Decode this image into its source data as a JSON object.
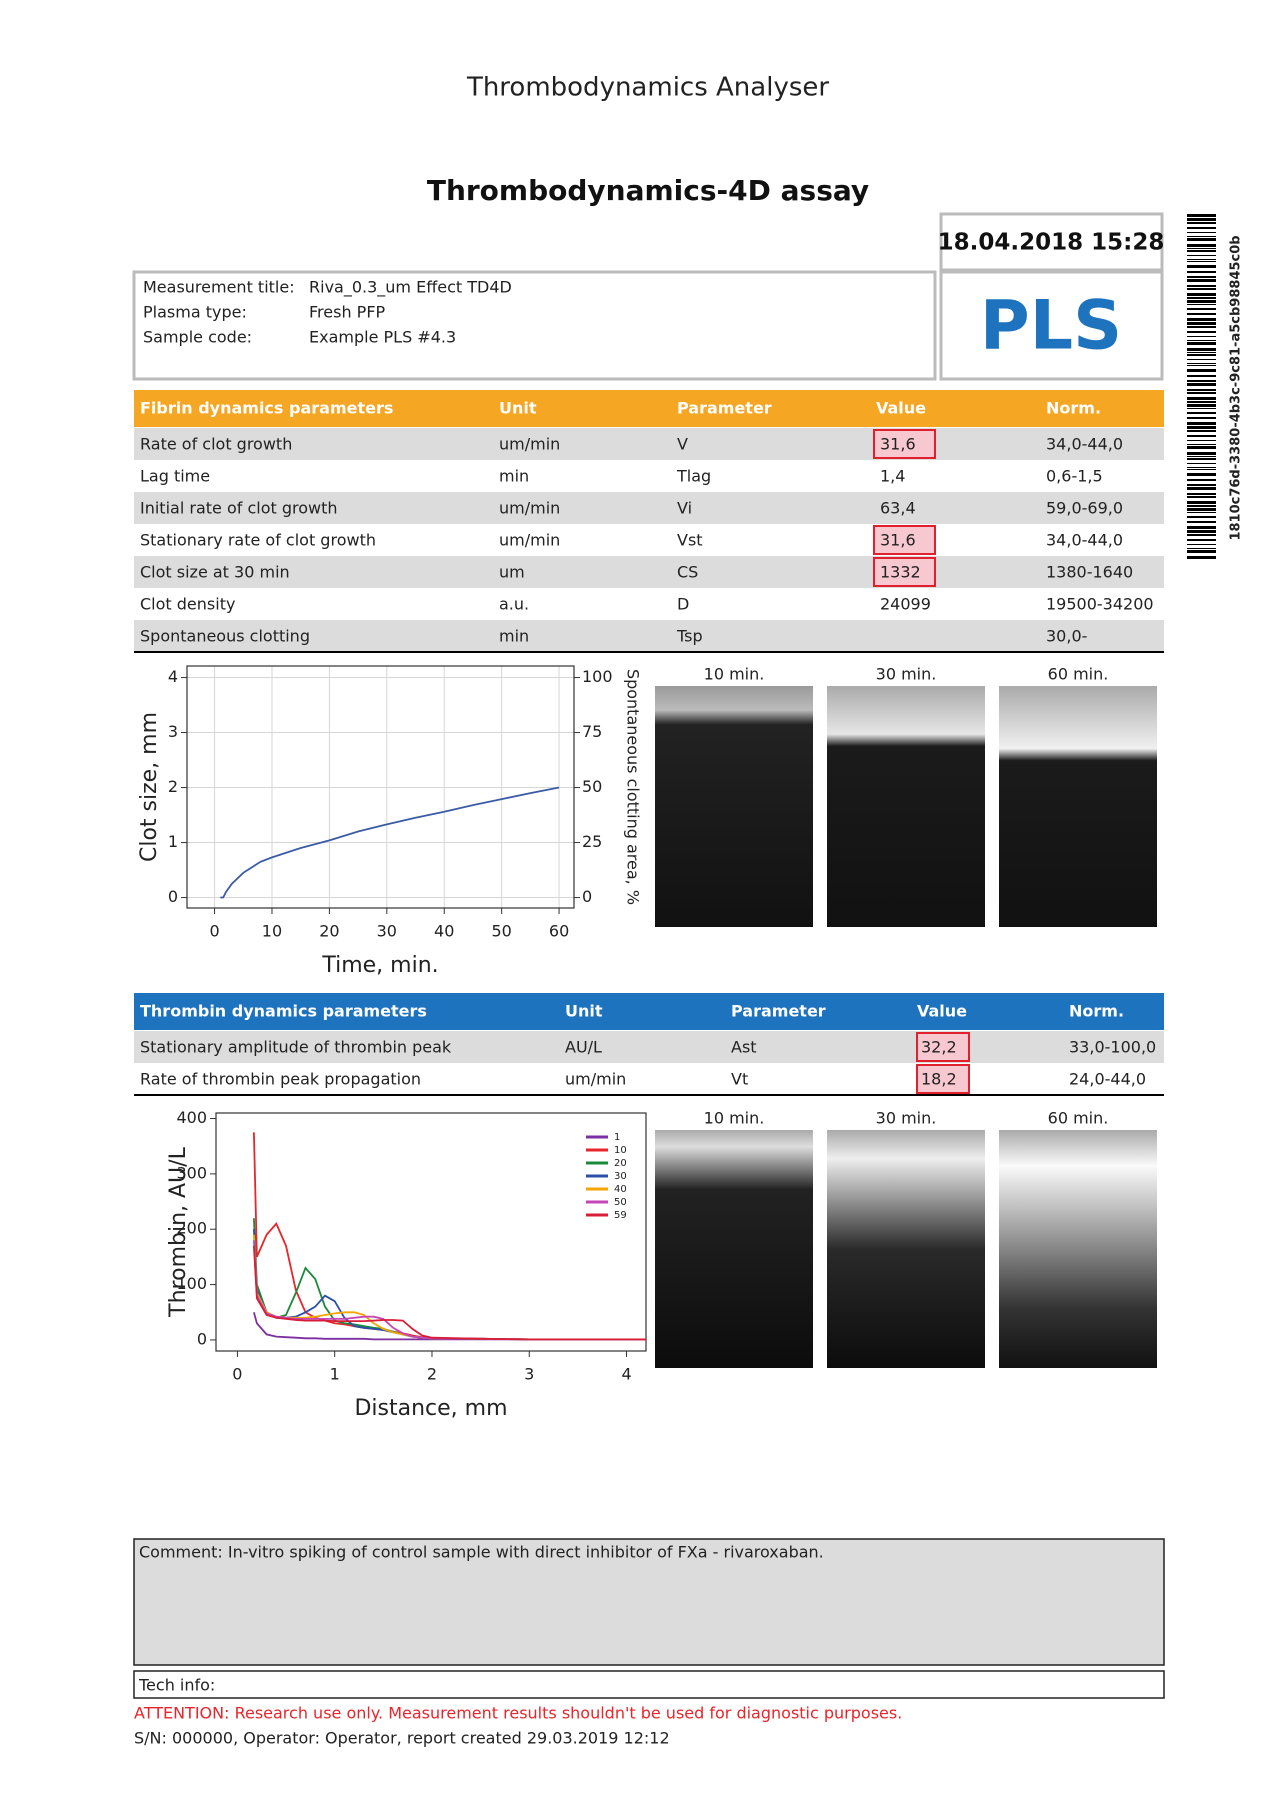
{
  "header": {
    "title": "Thrombodynamics Analyser",
    "subtitle": "Thrombodynamics-4D assay",
    "datetime": "18.04.2018 15:28",
    "code": "PLS",
    "barcode_text": "1810c76d-3380-4b3c-9c81-a5cb98845c0b"
  },
  "info": {
    "rows": [
      [
        "Measurement title:",
        "Riva_0.3_um Effect TD4D"
      ],
      [
        "Plasma type:",
        "Fresh PFP"
      ],
      [
        "Sample code:",
        "Example PLS #4.3"
      ]
    ]
  },
  "fibrin_table": {
    "columns": [
      "Fibrin dynamics parameters",
      "Unit",
      "Parameter",
      "Value",
      "Norm."
    ],
    "color": "#f5a623",
    "rows": [
      {
        "cells": [
          "Rate of clot growth",
          "um/min",
          "V",
          "31,6",
          "34,0-44,0"
        ],
        "flagged": true
      },
      {
        "cells": [
          "Lag time",
          "min",
          "Tlag",
          "1,4",
          "0,6-1,5"
        ]
      },
      {
        "cells": [
          "Initial rate of clot growth",
          "um/min",
          "Vi",
          "63,4",
          "59,0-69,0"
        ]
      },
      {
        "cells": [
          "Stationary rate of clot growth",
          "um/min",
          "Vst",
          "31,6",
          "34,0-44,0"
        ],
        "flagged": true
      },
      {
        "cells": [
          "Clot size at 30 min",
          "um",
          "CS",
          "1332",
          "1380-1640"
        ],
        "flagged": true
      },
      {
        "cells": [
          "Clot density",
          "a.u.",
          "D",
          "24099",
          "19500-34200"
        ]
      },
      {
        "cells": [
          "Spontaneous clotting",
          "min",
          "Tsp",
          null,
          "30,0-"
        ]
      }
    ]
  },
  "fibrin_images": {
    "labels": [
      "10 min.",
      "30 min.",
      "60 min."
    ]
  },
  "thrombin_table": {
    "columns": [
      "Thrombin dynamics parameters",
      "Unit",
      "Parameter",
      "Value",
      "Norm."
    ],
    "color": "#1e73be",
    "rows": [
      {
        "cells": [
          "Stationary amplitude of thrombin peak",
          "AU/L",
          "Ast",
          "32,2",
          "33,0-100,0"
        ],
        "flagged": true
      },
      {
        "cells": [
          "Rate of thrombin peak propagation",
          "um/min",
          "Vt",
          "18,2",
          "24,0-44,0"
        ],
        "flagged": true
      }
    ]
  },
  "thrombin_images": {
    "labels": [
      "10 min.",
      "30 min.",
      "60 min."
    ]
  },
  "chart_data": [
    {
      "type": "line",
      "xlabel": "Time, min.",
      "ylabel": "Clot size, mm",
      "y2label": "Spontaneous clotting area, %",
      "x": [
        1,
        1.5,
        2,
        3,
        5,
        8,
        10,
        15,
        20,
        25,
        30,
        35,
        40,
        45,
        50,
        55,
        60
      ],
      "series": [
        {
          "color": "#3b5ba5",
          "values": [
            0,
            0,
            0.1,
            0.25,
            0.45,
            0.65,
            0.73,
            0.9,
            1.04,
            1.2,
            1.33,
            1.45,
            1.56,
            1.68,
            1.79,
            1.9,
            2.0
          ]
        }
      ],
      "xlim": [
        -4.8,
        62.6
      ],
      "xticks": [
        0,
        10,
        20,
        30,
        40,
        50,
        60
      ],
      "ylim": [
        -0.19,
        4.21
      ],
      "yticks": [
        0,
        1,
        2,
        3,
        4
      ],
      "y2lim": [
        -4.75,
        105.25
      ],
      "y2ticks": [
        0,
        25,
        50,
        75,
        100
      ],
      "grid": true
    },
    {
      "type": "line",
      "xlabel": "Distance, mm",
      "ylabel": "Thrombin, AU/L",
      "legend": "top-right",
      "x": [
        0.17,
        0.2,
        0.3,
        0.4,
        0.5,
        0.6,
        0.7,
        0.8,
        0.9,
        1.0,
        1.1,
        1.2,
        1.3,
        1.4,
        1.5,
        1.6,
        1.7,
        1.8,
        1.9,
        2.0,
        2.5,
        3.0,
        3.5,
        4.0,
        4.2
      ],
      "series": [
        {
          "name": "1",
          "color": "#7b2fa0",
          "values": [
            50,
            30,
            10,
            6,
            5,
            4,
            3,
            3,
            2,
            2,
            2,
            2,
            2,
            1,
            1,
            1,
            1,
            1,
            1,
            1,
            1,
            1,
            1,
            1,
            1
          ]
        },
        {
          "name": "10",
          "color": "#e8252a",
          "values": [
            375,
            150,
            190,
            210,
            170,
            90,
            50,
            40,
            35,
            30,
            28,
            25,
            22,
            20,
            18,
            15,
            12,
            8,
            5,
            3,
            2,
            1,
            1,
            1,
            1
          ]
        },
        {
          "name": "20",
          "color": "#1a8a3a",
          "values": [
            220,
            100,
            50,
            40,
            45,
            85,
            130,
            110,
            60,
            35,
            30,
            28,
            25,
            22,
            20,
            15,
            10,
            6,
            4,
            3,
            2,
            1,
            1,
            1,
            1
          ]
        },
        {
          "name": "30",
          "color": "#2b4fa8",
          "values": [
            200,
            90,
            50,
            40,
            40,
            42,
            50,
            60,
            80,
            70,
            40,
            25,
            22,
            20,
            18,
            14,
            10,
            6,
            4,
            3,
            2,
            1,
            1,
            1,
            1
          ]
        },
        {
          "name": "40",
          "color": "#f5a500",
          "values": [
            190,
            85,
            50,
            42,
            40,
            40,
            40,
            42,
            45,
            48,
            50,
            50,
            45,
            30,
            20,
            14,
            10,
            6,
            4,
            3,
            2,
            1,
            1,
            1,
            1
          ]
        },
        {
          "name": "50",
          "color": "#c546b5",
          "values": [
            180,
            80,
            48,
            42,
            40,
            38,
            38,
            38,
            38,
            38,
            38,
            40,
            42,
            42,
            38,
            22,
            12,
            6,
            4,
            3,
            2,
            1,
            1,
            1,
            1
          ]
        },
        {
          "name": "59",
          "color": "#d81d3a",
          "values": [
            170,
            75,
            45,
            40,
            38,
            36,
            35,
            35,
            35,
            34,
            34,
            34,
            34,
            35,
            36,
            36,
            35,
            20,
            8,
            4,
            2,
            1,
            1,
            1,
            1
          ]
        }
      ],
      "xlim": [
        -0.22,
        4.2
      ],
      "xticks": [
        0,
        1,
        2,
        3,
        4
      ],
      "ylim": [
        -20,
        410
      ],
      "yticks": [
        0,
        100,
        200,
        300,
        400
      ],
      "grid": false
    }
  ],
  "footer": {
    "comment": "Comment: In-vitro spiking of control sample with direct inhibitor of FXa - rivaroxaban.",
    "tech_info": "Tech info:",
    "attention": "ATTENTION: Research use only. Measurement results shouldn't be used for diagnostic purposes.",
    "serial": "S/N: 000000, Operator: Operator, report created 29.03.2019 12:12"
  }
}
